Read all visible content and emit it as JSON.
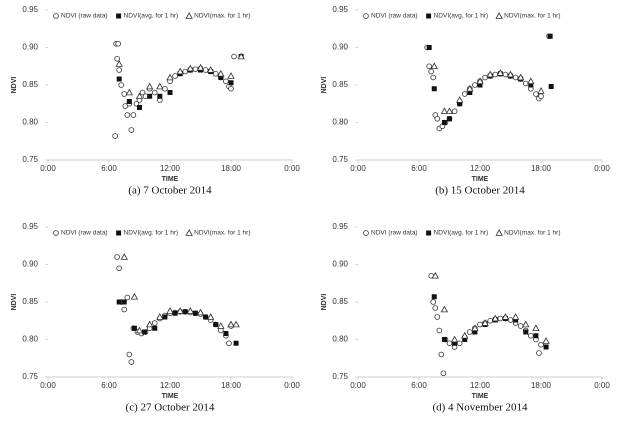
{
  "chart_data": [
    {
      "type": "scatter",
      "title": "(a)  7  October  2014",
      "xlabel": "TIME",
      "ylabel": "NDVI",
      "xlim": [
        0,
        24
      ],
      "xticks": [
        {
          "value": 0,
          "label": "0:00"
        },
        {
          "value": 6,
          "label": "6:00"
        },
        {
          "value": 12,
          "label": "12:00"
        },
        {
          "value": 18,
          "label": "18:00"
        },
        {
          "value": 24,
          "label": "0:00"
        }
      ],
      "ylim": [
        0.75,
        0.95
      ],
      "yticks": [
        0.75,
        {
          "value": 0.8,
          "label": "0.80"
        },
        0.85,
        {
          "value": 0.9,
          "label": "0.90"
        },
        0.95
      ],
      "series": [
        {
          "name": "NDVI (raw data)",
          "marker": "circle",
          "color": "#333333",
          "x": [
            6.7,
            6.9,
            6.8,
            7.0,
            6.6,
            7.2,
            7.5,
            7.6,
            7.8,
            8.0,
            8.2,
            8.4,
            8.7,
            9.0,
            9.3,
            9.6,
            10.0,
            10.5,
            11.0,
            11.5,
            12.0,
            12.5,
            13.0,
            13.5,
            14.0,
            14.5,
            15.0,
            15.5,
            16.0,
            16.5,
            17.0,
            17.5,
            17.8,
            18.0,
            18.3
          ],
          "values": [
            0.905,
            0.905,
            0.885,
            0.87,
            0.782,
            0.85,
            0.838,
            0.822,
            0.81,
            0.825,
            0.79,
            0.81,
            0.825,
            0.83,
            0.84,
            0.835,
            0.845,
            0.84,
            0.83,
            0.845,
            0.855,
            0.862,
            0.866,
            0.868,
            0.87,
            0.871,
            0.872,
            0.87,
            0.868,
            0.865,
            0.86,
            0.855,
            0.848,
            0.845,
            0.888
          ]
        },
        {
          "name": "NDVI(avg. for 1 hr)",
          "marker": "square",
          "color": "#111111",
          "x": [
            7,
            8,
            9,
            10,
            11,
            12,
            13,
            14,
            15,
            16,
            17,
            18,
            19
          ],
          "values": [
            0.858,
            0.828,
            0.82,
            0.835,
            0.835,
            0.84,
            0.865,
            0.87,
            0.87,
            0.868,
            0.86,
            0.853,
            0.888
          ]
        },
        {
          "name": "NDVI(max. for 1 hr)",
          "marker": "triangle",
          "color": "#333333",
          "x": [
            7,
            8,
            9,
            10,
            11,
            12,
            13,
            14,
            15,
            16,
            17,
            18,
            19
          ],
          "values": [
            0.878,
            0.84,
            0.835,
            0.848,
            0.848,
            0.86,
            0.868,
            0.872,
            0.873,
            0.87,
            0.865,
            0.862,
            0.888
          ]
        }
      ]
    },
    {
      "type": "scatter",
      "title": "(b)  15  October  2014",
      "xlabel": "TIME",
      "ylabel": "NDVI",
      "xlim": [
        0,
        24
      ],
      "xticks": [
        {
          "value": 0,
          "label": "0:00"
        },
        {
          "value": 6,
          "label": "6:00"
        },
        {
          "value": 12,
          "label": "12:00"
        },
        {
          "value": 18,
          "label": "18:00"
        },
        {
          "value": 24,
          "label": "0:00"
        }
      ],
      "ylim": [
        0.75,
        0.95
      ],
      "yticks": [
        0.75,
        {
          "value": 0.8,
          "label": "0.80"
        },
        0.85,
        {
          "value": 0.9,
          "label": "0.90"
        },
        0.95
      ],
      "series": [
        {
          "name": "NDVI (raw data)",
          "marker": "circle",
          "color": "#333333",
          "x": [
            6.8,
            7.0,
            7.2,
            7.4,
            7.6,
            7.8,
            8.0,
            8.3,
            8.6,
            9.0,
            9.5,
            10.0,
            10.5,
            11.0,
            11.5,
            12.0,
            12.5,
            13.0,
            13.5,
            14.0,
            14.5,
            15.0,
            15.5,
            16.0,
            16.5,
            17.0,
            17.5,
            17.8,
            18.0,
            18.8
          ],
          "values": [
            0.9,
            0.875,
            0.868,
            0.86,
            0.81,
            0.805,
            0.792,
            0.795,
            0.8,
            0.805,
            0.815,
            0.825,
            0.838,
            0.845,
            0.85,
            0.855,
            0.86,
            0.862,
            0.864,
            0.865,
            0.864,
            0.862,
            0.86,
            0.858,
            0.852,
            0.845,
            0.838,
            0.832,
            0.835,
            0.915
          ]
        },
        {
          "name": "NDVI(avg. for 1 hr)",
          "marker": "square",
          "color": "#111111",
          "x": [
            7,
            7.5,
            8.5,
            9,
            10,
            11,
            12,
            13,
            14,
            15,
            16,
            17,
            18.9,
            19
          ],
          "values": [
            0.9,
            0.845,
            0.8,
            0.805,
            0.825,
            0.84,
            0.85,
            0.862,
            0.865,
            0.862,
            0.858,
            0.85,
            0.915,
            0.848
          ]
        },
        {
          "name": "NDVI(max. for 1 hr)",
          "marker": "triangle",
          "color": "#333333",
          "x": [
            7.5,
            8.5,
            9,
            10,
            11,
            12,
            13,
            14,
            15,
            16,
            17,
            18
          ],
          "values": [
            0.875,
            0.815,
            0.815,
            0.83,
            0.845,
            0.855,
            0.864,
            0.866,
            0.864,
            0.86,
            0.855,
            0.842
          ]
        }
      ]
    },
    {
      "type": "scatter",
      "title": "(c)  27  October  2014",
      "xlabel": "TIME",
      "ylabel": "NDVI",
      "xlim": [
        0,
        24
      ],
      "xticks": [
        {
          "value": 0,
          "label": "0:00"
        },
        {
          "value": 6,
          "label": "6:00"
        },
        {
          "value": 12,
          "label": "12:00"
        },
        {
          "value": 18,
          "label": "18:00"
        },
        {
          "value": 24,
          "label": "0:00"
        }
      ],
      "ylim": [
        0.75,
        0.95
      ],
      "yticks": [
        0.75,
        {
          "value": 0.8,
          "label": "0.80"
        },
        0.85,
        {
          "value": 0.9,
          "label": "0.90"
        },
        0.95
      ],
      "series": [
        {
          "name": "NDVI (raw data)",
          "marker": "circle",
          "color": "#333333",
          "x": [
            6.8,
            7.0,
            7.2,
            7.5,
            7.8,
            8.0,
            8.2,
            8.4,
            8.8,
            9.2,
            9.6,
            10.0,
            10.5,
            11.0,
            11.5,
            12.0,
            12.5,
            13.0,
            13.5,
            14.0,
            14.5,
            15.0,
            15.5,
            16.0,
            16.5,
            17.0,
            17.5,
            17.8,
            18.0
          ],
          "values": [
            0.91,
            0.895,
            0.85,
            0.84,
            0.856,
            0.78,
            0.77,
            0.815,
            0.81,
            0.808,
            0.81,
            0.815,
            0.822,
            0.828,
            0.832,
            0.835,
            0.836,
            0.837,
            0.837,
            0.836,
            0.835,
            0.834,
            0.83,
            0.826,
            0.82,
            0.812,
            0.805,
            0.795,
            0.818
          ]
        },
        {
          "name": "NDVI(avg. for 1 hr)",
          "marker": "square",
          "color": "#111111",
          "x": [
            7,
            7.5,
            8.5,
            9.5,
            10.5,
            11.5,
            12.5,
            13.5,
            14.5,
            15.5,
            16.5,
            17.5,
            18.5
          ],
          "values": [
            0.85,
            0.85,
            0.815,
            0.81,
            0.815,
            0.83,
            0.835,
            0.837,
            0.835,
            0.83,
            0.82,
            0.808,
            0.795
          ]
        },
        {
          "name": "NDVI(max. for 1 hr)",
          "marker": "triangle",
          "color": "#333333",
          "x": [
            7.5,
            8.5,
            9,
            10,
            11,
            12,
            13,
            14,
            15,
            16,
            17,
            18,
            18.5
          ],
          "values": [
            0.91,
            0.857,
            0.812,
            0.82,
            0.83,
            0.838,
            0.838,
            0.838,
            0.836,
            0.83,
            0.818,
            0.82,
            0.82
          ]
        }
      ]
    },
    {
      "type": "scatter",
      "title": "(d)  4  November  2014",
      "xlabel": "TIME",
      "ylabel": "NDVI",
      "xlim": [
        0,
        24
      ],
      "xticks": [
        {
          "value": 0,
          "label": "0:00"
        },
        {
          "value": 6,
          "label": "6:00"
        },
        {
          "value": 12,
          "label": "12:00"
        },
        {
          "value": 18,
          "label": "18:00"
        },
        {
          "value": 24,
          "label": "0:00"
        }
      ],
      "ylim": [
        0.75,
        0.95
      ],
      "yticks": [
        0.75,
        {
          "value": 0.8,
          "label": "0.80"
        },
        0.85,
        {
          "value": 0.9,
          "label": "0.90"
        },
        0.95
      ],
      "series": [
        {
          "name": "NDVI (raw data)",
          "marker": "circle",
          "color": "#333333",
          "x": [
            7.2,
            7.4,
            7.6,
            7.8,
            8.0,
            8.2,
            8.4,
            8.6,
            9.0,
            9.5,
            10.0,
            10.5,
            11.0,
            11.5,
            12.0,
            12.5,
            13.0,
            13.5,
            14.0,
            14.5,
            15.0,
            15.5,
            16.0,
            16.5,
            17.0,
            17.5,
            17.8,
            18.0
          ],
          "values": [
            0.885,
            0.85,
            0.842,
            0.83,
            0.812,
            0.78,
            0.755,
            0.8,
            0.795,
            0.79,
            0.795,
            0.803,
            0.81,
            0.815,
            0.82,
            0.822,
            0.825,
            0.827,
            0.828,
            0.828,
            0.826,
            0.822,
            0.818,
            0.812,
            0.805,
            0.8,
            0.782,
            0.793
          ]
        },
        {
          "name": "NDVI(avg. for 1 hr)",
          "marker": "square",
          "color": "#111111",
          "x": [
            7.5,
            8.5,
            9.5,
            10.5,
            11.5,
            12.5,
            13.5,
            14.5,
            15.5,
            16.5,
            17.5,
            18.5
          ],
          "values": [
            0.857,
            0.8,
            0.795,
            0.8,
            0.81,
            0.82,
            0.826,
            0.828,
            0.826,
            0.81,
            0.805,
            0.79
          ]
        },
        {
          "name": "NDVI(max. for 1 hr)",
          "marker": "triangle",
          "color": "#333333",
          "x": [
            7.6,
            8.5,
            9.5,
            10.5,
            11.5,
            12.5,
            13.5,
            14.5,
            15.5,
            16.5,
            17.5,
            18.5
          ],
          "values": [
            0.885,
            0.84,
            0.8,
            0.805,
            0.815,
            0.822,
            0.828,
            0.83,
            0.83,
            0.82,
            0.815,
            0.798
          ]
        }
      ]
    }
  ]
}
